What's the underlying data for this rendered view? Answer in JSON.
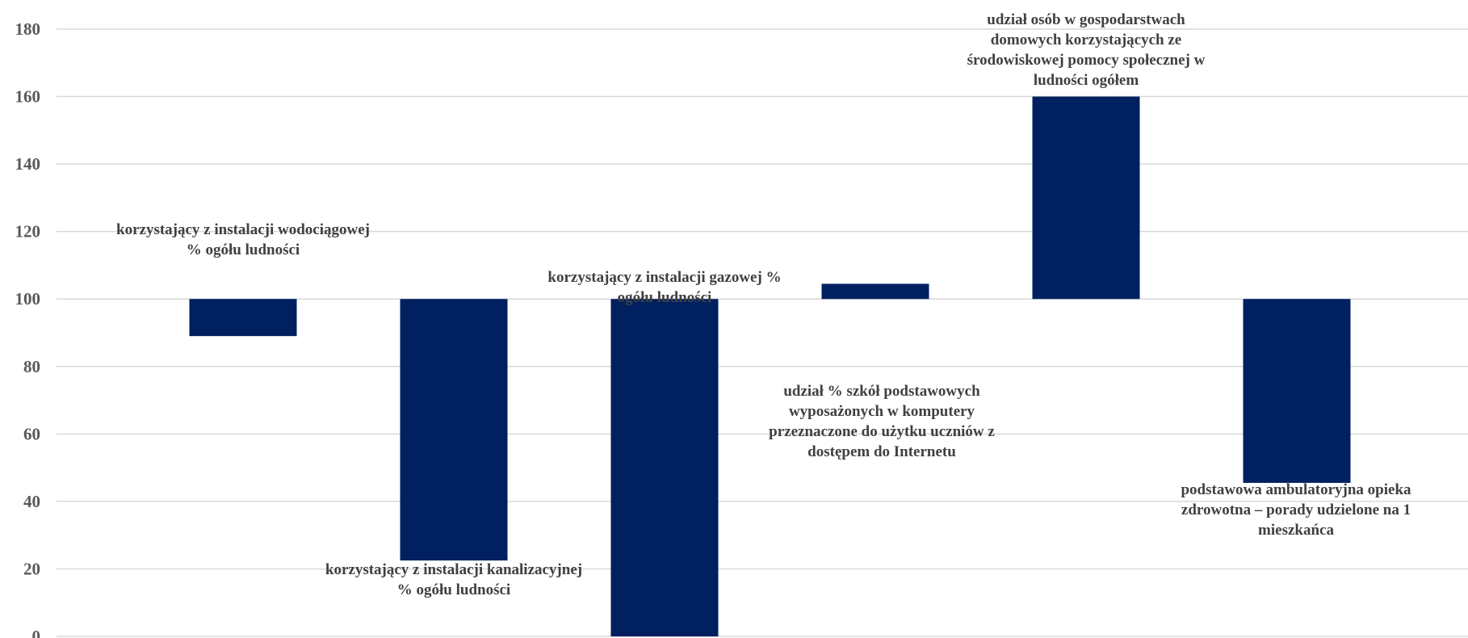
{
  "colors": {
    "bar": "#002060",
    "grid": "#d9d9d9",
    "tick_text": "#595959",
    "label_text": "#404040"
  },
  "chart_data": {
    "type": "bar",
    "baseline": 100,
    "ylim": [
      0,
      180
    ],
    "yticks": [
      0,
      20,
      40,
      60,
      80,
      100,
      120,
      140,
      160,
      180
    ],
    "grid": true,
    "legend": "none",
    "title": "",
    "xlabel": "",
    "ylabel": "",
    "categories": [
      "korzystający z instalacji wodociągowej % ogółu ludności",
      "korzystający z instalacji kanalizacyjnej % ogółu ludności",
      "korzystający z instalacji gazowej % ogółu ludności",
      "udział % szkół podstawowych wyposażonych w komputery przeznaczone do użytku uczniów z dostępem do Internetu",
      "udział osób w gospodarstwach domowych korzystających ze środowiskowej pomocy społecznej w ludności ogółem",
      "podstawowa ambulatoryjna opieka zdrowotna – porady udzielone na 1 mieszkańca"
    ],
    "category_label_lines": [
      [
        "korzystający z instalacji wodociągowej",
        "% ogółu ludności"
      ],
      [
        "korzystający z instalacji kanalizacyjnej",
        "% ogółu ludności"
      ],
      [
        "korzystający z instalacji gazowej %",
        "ogółu ludności"
      ],
      [
        "udział % szkół podstawowych",
        "wyposażonych w komputery",
        "przeznaczone do użytku uczniów z",
        "dostępem do Internetu"
      ],
      [
        "udział osób w gospodarstwach",
        "domowych korzystających ze",
        "środowiskowej pomocy społecznej w",
        "ludności ogółem"
      ],
      [
        "podstawowa ambulatoryjna opieka",
        "zdrowotna – porady udzielone na 1",
        "mieszkańca"
      ]
    ],
    "values": [
      89,
      22.5,
      0,
      104.5,
      160,
      45.5
    ]
  }
}
